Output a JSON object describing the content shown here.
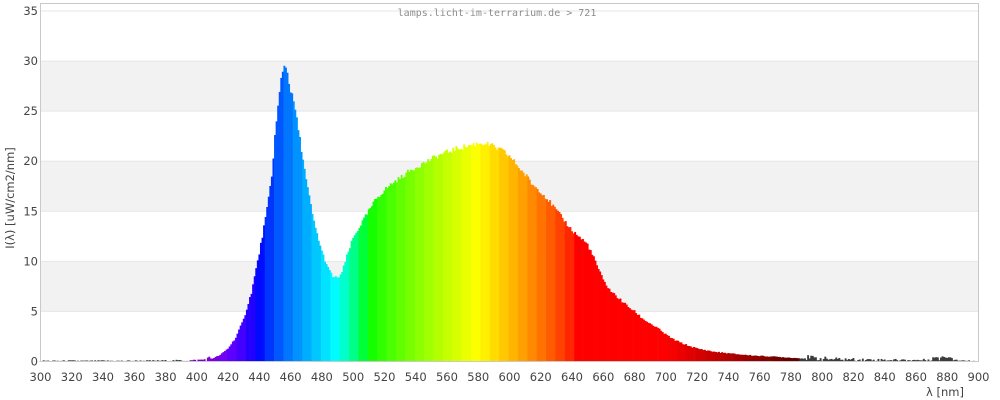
{
  "page": {
    "title": "lamps.licht-im-terrarium.de > 721"
  },
  "colors": {
    "background": "#ffffff",
    "stripe_fill": "#f2f2f2",
    "grid_line": "#e6e6e6",
    "axis_border": "#c9c9c9",
    "tick_text": "#444444",
    "title_text": "#8c8c8c",
    "noise_dark": "#3c3c3c"
  },
  "chart_data": {
    "type": "area",
    "subtype": "emission-spectrum",
    "title": "lamps.licht-im-terrarium.de > 721",
    "xlabel": "λ [nm]",
    "ylabel": "I(λ)  [uW/cm2/nm]",
    "xlim": [
      300,
      900
    ],
    "ylim": [
      0,
      35
    ],
    "grid": "horizontal-stripes",
    "legend": "none",
    "fill_style": "spectral-wavelength-colors",
    "x_ticks": [
      300,
      320,
      340,
      360,
      380,
      400,
      420,
      440,
      460,
      480,
      500,
      520,
      540,
      560,
      580,
      600,
      620,
      640,
      660,
      680,
      700,
      720,
      740,
      760,
      780,
      800,
      820,
      840,
      860,
      880,
      900
    ],
    "y_ticks": [
      0,
      5,
      10,
      15,
      20,
      25,
      30,
      35
    ],
    "features": {
      "blue_peak": {
        "wavelength_nm": 456,
        "value": 29.7
      },
      "dip": {
        "wavelength_nm": 490,
        "value": 8.3
      },
      "phosphor_peak": {
        "wavelength_nm": 582,
        "value": 21.8
      },
      "noise_floor_regions_nm": [
        [
          300,
          410
        ],
        [
          780,
          900
        ]
      ]
    },
    "points": [
      [
        300,
        0.06
      ],
      [
        310,
        0.05
      ],
      [
        320,
        0.06
      ],
      [
        330,
        0.05
      ],
      [
        340,
        0.06
      ],
      [
        350,
        0.05
      ],
      [
        360,
        0.06
      ],
      [
        370,
        0.06
      ],
      [
        380,
        0.07
      ],
      [
        390,
        0.08
      ],
      [
        395,
        0.08
      ],
      [
        400,
        0.1
      ],
      [
        405,
        0.16
      ],
      [
        410,
        0.3
      ],
      [
        415,
        0.65
      ],
      [
        420,
        1.3
      ],
      [
        425,
        2.4
      ],
      [
        430,
        4.2
      ],
      [
        435,
        6.9
      ],
      [
        440,
        10.8
      ],
      [
        445,
        15.2
      ],
      [
        448,
        18.5
      ],
      [
        450,
        22.5
      ],
      [
        452,
        25.4
      ],
      [
        454,
        28.2
      ],
      [
        456,
        29.7
      ],
      [
        458,
        28.9
      ],
      [
        460,
        27.0
      ],
      [
        462,
        26.0
      ],
      [
        465,
        23.2
      ],
      [
        468,
        20.2
      ],
      [
        470,
        18.1
      ],
      [
        475,
        13.9
      ],
      [
        480,
        11.0
      ],
      [
        484,
        9.3
      ],
      [
        487,
        8.5
      ],
      [
        490,
        8.3
      ],
      [
        493,
        8.9
      ],
      [
        496,
        10.5
      ],
      [
        500,
        12.3
      ],
      [
        505,
        13.7
      ],
      [
        510,
        15.0
      ],
      [
        515,
        16.3
      ],
      [
        520,
        17.1
      ],
      [
        525,
        17.8
      ],
      [
        530,
        18.3
      ],
      [
        535,
        18.9
      ],
      [
        540,
        19.4
      ],
      [
        545,
        19.8
      ],
      [
        550,
        20.2
      ],
      [
        555,
        20.6
      ],
      [
        560,
        20.9
      ],
      [
        565,
        21.2
      ],
      [
        570,
        21.4
      ],
      [
        575,
        21.6
      ],
      [
        580,
        21.8
      ],
      [
        584,
        21.8
      ],
      [
        588,
        21.6
      ],
      [
        592,
        21.3
      ],
      [
        596,
        21.0
      ],
      [
        600,
        20.5
      ],
      [
        604,
        19.8
      ],
      [
        608,
        19.0
      ],
      [
        612,
        18.3
      ],
      [
        614,
        17.8
      ],
      [
        616,
        17.5
      ],
      [
        620,
        17.0
      ],
      [
        625,
        16.1
      ],
      [
        630,
        15.1
      ],
      [
        635,
        14.1
      ],
      [
        640,
        13.1
      ],
      [
        645,
        12.4
      ],
      [
        650,
        11.7
      ],
      [
        655,
        10.0
      ],
      [
        660,
        8.1
      ],
      [
        665,
        7.0
      ],
      [
        670,
        6.3
      ],
      [
        675,
        5.6
      ],
      [
        680,
        5.0
      ],
      [
        685,
        4.3
      ],
      [
        690,
        3.8
      ],
      [
        695,
        3.3
      ],
      [
        700,
        2.7
      ],
      [
        705,
        2.2
      ],
      [
        710,
        1.85
      ],
      [
        715,
        1.55
      ],
      [
        720,
        1.3
      ],
      [
        725,
        1.15
      ],
      [
        730,
        1.0
      ],
      [
        735,
        0.9
      ],
      [
        740,
        0.82
      ],
      [
        745,
        0.74
      ],
      [
        750,
        0.67
      ],
      [
        755,
        0.61
      ],
      [
        760,
        0.56
      ],
      [
        765,
        0.52
      ],
      [
        770,
        0.48
      ],
      [
        775,
        0.43
      ],
      [
        780,
        0.38
      ],
      [
        785,
        0.33
      ],
      [
        790,
        0.29
      ],
      [
        795,
        0.26
      ],
      [
        800,
        0.23
      ],
      [
        805,
        0.2
      ],
      [
        810,
        0.18
      ],
      [
        815,
        0.17
      ],
      [
        820,
        0.16
      ],
      [
        825,
        0.15
      ],
      [
        830,
        0.14
      ],
      [
        835,
        0.13
      ],
      [
        840,
        0.13
      ],
      [
        845,
        0.12
      ],
      [
        850,
        0.12
      ],
      [
        855,
        0.11
      ],
      [
        860,
        0.11
      ],
      [
        865,
        0.12
      ],
      [
        868,
        0.15
      ],
      [
        871,
        0.3
      ],
      [
        873,
        0.45
      ],
      [
        875,
        0.3
      ],
      [
        877,
        0.5
      ],
      [
        880,
        0.38
      ],
      [
        882,
        0.45
      ],
      [
        884,
        0.25
      ],
      [
        886,
        0.15
      ],
      [
        888,
        0.1
      ],
      [
        890,
        0.08
      ],
      [
        895,
        0.05
      ],
      [
        900,
        0.03
      ]
    ]
  }
}
